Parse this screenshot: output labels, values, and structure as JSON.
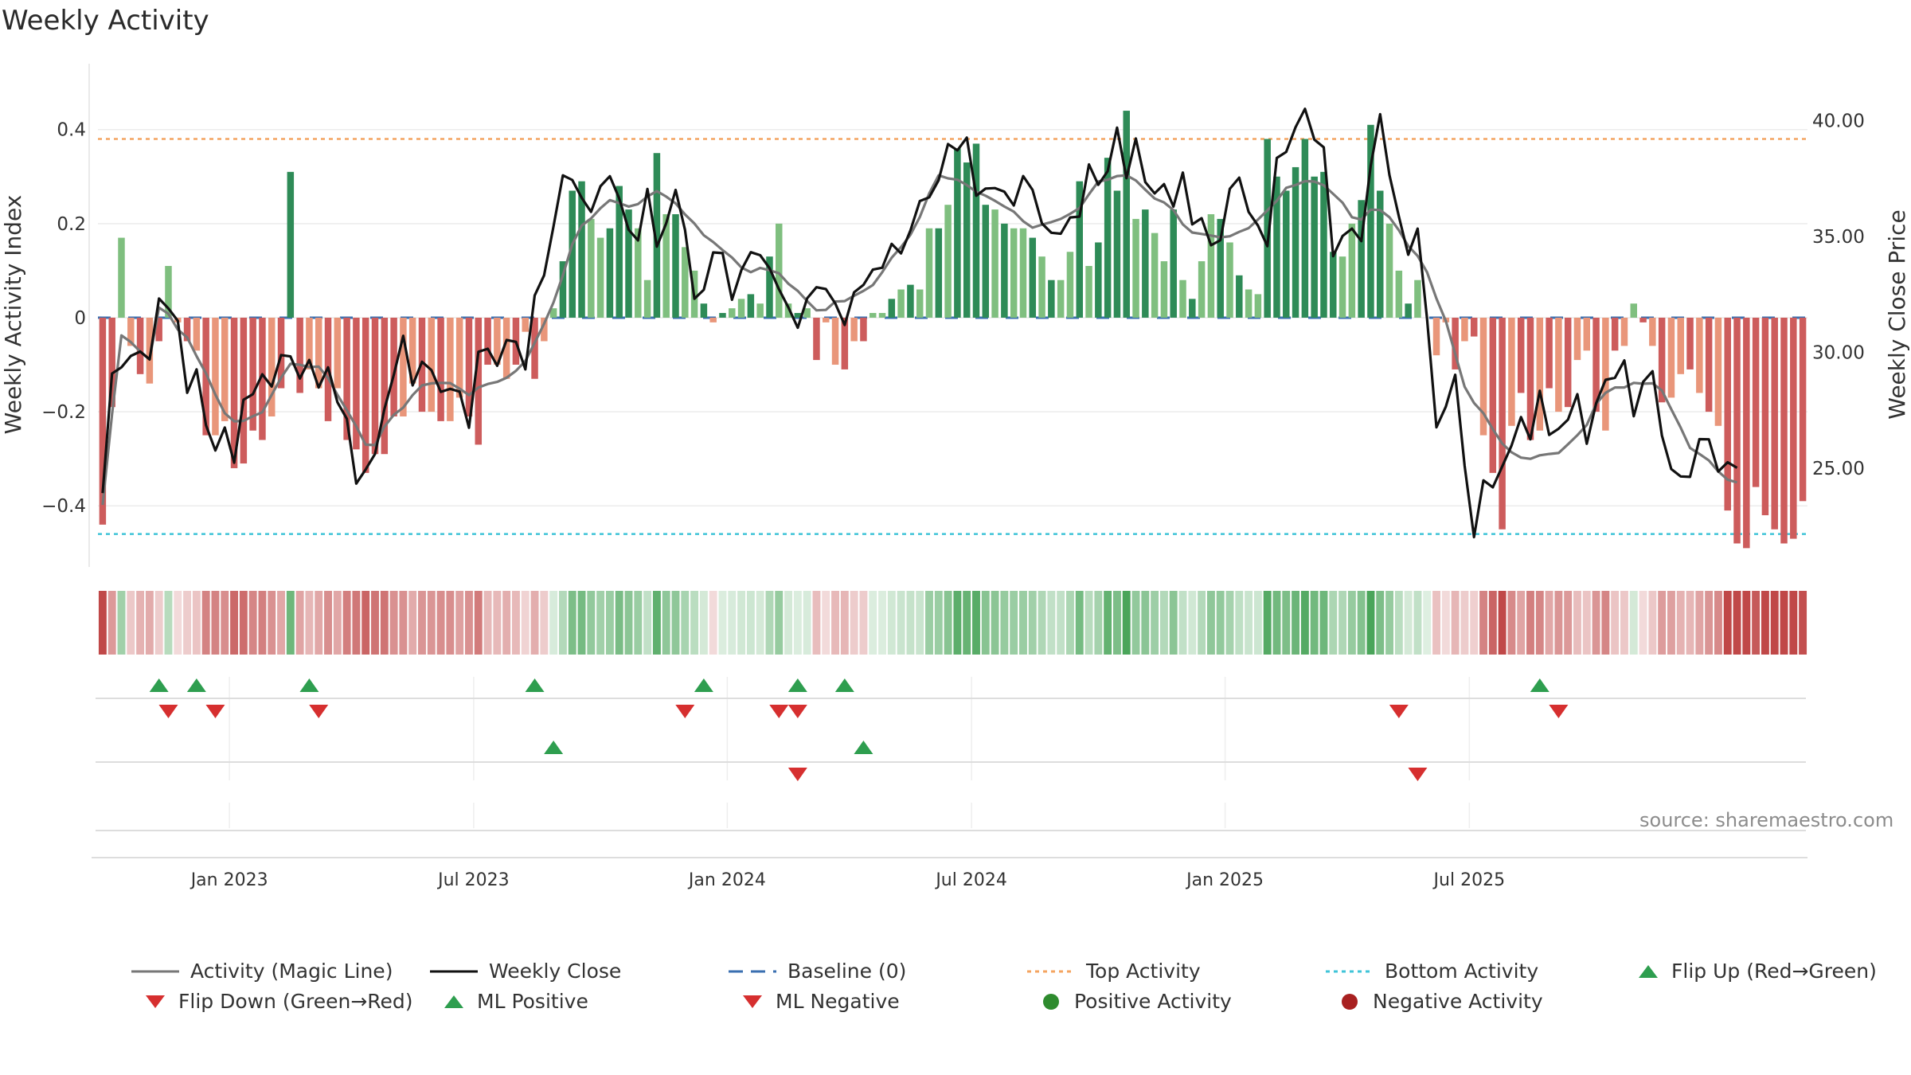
{
  "title": "Weekly Activity",
  "source": "source: sharemaestro.com",
  "colors": {
    "pos_strong": "#2e8b57",
    "pos_light": "#7fbf7f",
    "neg_strong": "#cd5c5c",
    "neg_light": "#e9967a",
    "magic": "#777777",
    "close": "#111111",
    "baseline": "#3a6fb0",
    "top": "#f4a460",
    "bottom": "#40c4d8",
    "flip_up": "#2e9e4f",
    "flip_down": "#d62f2f"
  },
  "chart_data": {
    "type": "bar+line",
    "ylabel_left": "Weekly Activity Index",
    "ylabel_right": "Weekly Close Price",
    "left_ticks": [
      "0.4",
      "0.2",
      "0",
      "−0.2",
      "−0.4"
    ],
    "right_ticks": [
      "40.00",
      "35.00",
      "30.00",
      "25.00"
    ],
    "x_ticks": [
      "Jan 2023",
      "Jul 2023",
      "Jan 2024",
      "Jul 2024",
      "Jan 2025",
      "Jul 2025"
    ],
    "ylim_left": [
      -0.53,
      0.54
    ],
    "ylim_right": [
      20.73,
      42.46
    ],
    "top_activity": 0.38,
    "bottom_activity": -0.46,
    "activity": [
      -0.44,
      -0.19,
      0.17,
      -0.06,
      -0.12,
      -0.14,
      -0.05,
      0.11,
      -0.01,
      -0.05,
      -0.07,
      -0.25,
      -0.25,
      -0.22,
      -0.32,
      -0.31,
      -0.24,
      -0.26,
      -0.21,
      -0.15,
      0.31,
      -0.16,
      -0.11,
      -0.15,
      -0.22,
      -0.15,
      -0.26,
      -0.28,
      -0.33,
      -0.29,
      -0.29,
      -0.21,
      -0.21,
      -0.14,
      -0.2,
      -0.2,
      -0.22,
      -0.22,
      -0.17,
      -0.21,
      -0.27,
      -0.1,
      -0.1,
      -0.13,
      -0.1,
      -0.03,
      -0.13,
      -0.05,
      0.02,
      0.12,
      0.27,
      0.29,
      0.21,
      0.17,
      0.19,
      0.28,
      0.23,
      0.19,
      0.08,
      0.35,
      0.22,
      0.22,
      0.15,
      0.1,
      0.03,
      -0.01,
      0.01,
      0.02,
      0.04,
      0.05,
      0.03,
      0.13,
      0.2,
      0.03,
      0.01,
      0.02,
      -0.09,
      -0.01,
      -0.1,
      -0.11,
      -0.05,
      -0.05,
      0.01,
      0.01,
      0.04,
      0.06,
      0.07,
      0.06,
      0.19,
      0.19,
      0.24,
      0.36,
      0.33,
      0.37,
      0.24,
      0.23,
      0.2,
      0.19,
      0.19,
      0.17,
      0.13,
      0.08,
      0.08,
      0.14,
      0.29,
      0.11,
      0.16,
      0.34,
      0.27,
      0.44,
      0.21,
      0.23,
      0.18,
      0.12,
      0.23,
      0.08,
      0.04,
      0.12,
      0.22,
      0.21,
      0.16,
      0.09,
      0.06,
      0.05,
      0.38,
      0.3,
      0.27,
      0.32,
      0.38,
      0.3,
      0.31,
      0.14,
      0.13,
      0.2,
      0.25,
      0.41,
      0.27,
      0.2,
      0.1,
      0.03,
      0.08,
      0.0,
      -0.08,
      -0.01,
      -0.11,
      -0.05,
      -0.04,
      -0.25,
      -0.33,
      -0.45,
      -0.23,
      -0.16,
      -0.26,
      -0.24,
      -0.15,
      -0.2,
      -0.19,
      -0.09,
      -0.07,
      -0.2,
      -0.24,
      -0.07,
      -0.06,
      0.03,
      -0.01,
      -0.06,
      -0.18,
      -0.17,
      -0.12,
      -0.11,
      -0.16,
      -0.2,
      -0.23,
      -0.41,
      -0.48,
      -0.49,
      -0.36,
      -0.42,
      -0.45,
      -0.48,
      -0.47,
      -0.39
    ],
    "weekly_close": [
      23.92,
      29.08,
      29.35,
      29.84,
      30.03,
      29.69,
      32.32,
      31.89,
      31.36,
      28.25,
      29.26,
      26.85,
      25.76,
      26.75,
      25.23,
      27.95,
      28.19,
      29.05,
      28.52,
      29.88,
      29.82,
      28.87,
      29.67,
      28.48,
      29.35,
      27.84,
      27.13,
      24.33,
      24.94,
      25.61,
      27.55,
      29.03,
      30.71,
      28.57,
      29.59,
      29.23,
      28.29,
      28.42,
      28.3,
      26.74,
      30.02,
      30.15,
      29.42,
      30.53,
      30.45,
      29.26,
      32.45,
      33.32,
      35.43,
      37.64,
      37.44,
      36.67,
      36.06,
      37.17,
      37.6,
      36.64,
      35.29,
      34.83,
      37.05,
      34.56,
      35.57,
      37.01,
      35.28,
      32.31,
      32.7,
      34.31,
      34.28,
      32.27,
      33.55,
      34.32,
      34.19,
      33.63,
      32.72,
      31.94,
      31.06,
      32.33,
      32.81,
      32.73,
      32.11,
      31.18,
      32.59,
      32.91,
      33.57,
      33.65,
      34.68,
      34.27,
      35.26,
      36.53,
      36.69,
      37.43,
      38.99,
      38.72,
      39.27,
      36.76,
      37.07,
      37.09,
      36.93,
      36.34,
      37.61,
      37.01,
      35.56,
      35.16,
      35.12,
      35.82,
      35.86,
      38.11,
      37.23,
      37.82,
      39.7,
      37.52,
      39.23,
      37.35,
      36.86,
      37.26,
      36.29,
      37.76,
      35.52,
      35.79,
      34.62,
      34.84,
      37.06,
      37.54,
      36.06,
      35.47,
      34.58,
      38.39,
      38.65,
      39.72,
      40.51,
      39.18,
      38.85,
      34.15,
      35.02,
      35.34,
      34.8,
      38.07,
      40.28,
      37.65,
      35.87,
      34.21,
      35.34,
      31.45,
      26.76,
      27.65,
      29.03,
      25.1,
      22.02,
      24.47,
      24.17,
      25.07,
      25.98,
      27.2,
      26.24,
      28.34,
      26.43,
      26.7,
      27.09,
      28.19,
      26.05,
      27.8,
      28.81,
      28.9,
      29.65,
      27.24,
      28.72,
      29.18,
      26.4,
      24.96,
      24.64,
      24.62,
      26.25,
      26.24,
      24.85,
      25.25,
      25.01
    ],
    "magic_line": [
      23.41,
      27.32,
      30.73,
      30.44,
      30.03,
      29.7,
      31.93,
      31.66,
      30.98,
      30.64,
      29.83,
      29.09,
      28.17,
      27.37,
      27.02,
      27.04,
      27.24,
      27.41,
      28.16,
      28.9,
      29.5,
      29.46,
      29.36,
      29.38,
      28.89,
      28.16,
      27.5,
      26.8,
      26.01,
      25.99,
      26.79,
      27.3,
      27.61,
      28.15,
      28.57,
      28.66,
      28.68,
      28.67,
      28.43,
      28.15,
      28.48,
      28.63,
      28.72,
      28.9,
      29.2,
      29.62,
      30.41,
      31.23,
      32.15,
      33.32,
      34.66,
      35.47,
      35.78,
      36.22,
      36.57,
      36.44,
      36.29,
      36.4,
      36.73,
      36.96,
      36.72,
      36.43,
      35.95,
      35.56,
      35.05,
      34.76,
      34.41,
      34.09,
      33.66,
      33.46,
      33.64,
      33.54,
      33.41,
      32.96,
      32.65,
      32.21,
      31.81,
      31.83,
      32.19,
      32.21,
      32.44,
      32.65,
      32.9,
      33.46,
      34.08,
      34.54,
      35.07,
      35.84,
      36.86,
      37.64,
      37.51,
      37.45,
      37.22,
      36.93,
      36.76,
      36.54,
      36.29,
      36.07,
      35.66,
      35.38,
      35.51,
      35.62,
      35.76,
      35.98,
      36.23,
      36.82,
      37.37,
      37.45,
      37.61,
      37.64,
      37.42,
      37.02,
      36.64,
      36.47,
      36.14,
      35.52,
      35.17,
      35.11,
      35.04,
      34.96,
      35.01,
      35.2,
      35.36,
      35.73,
      36.13,
      36.54,
      37.1,
      37.22,
      37.39,
      37.37,
      37.21,
      36.84,
      36.46,
      35.83,
      35.73,
      36.16,
      36.14,
      35.83,
      35.27,
      34.59,
      34.16,
      33.46,
      32.32,
      31.35,
      29.92,
      28.51,
      27.81,
      27.37,
      26.68,
      26.06,
      25.68,
      25.45,
      25.4,
      25.55,
      25.61,
      25.65,
      26.03,
      26.42,
      26.86,
      27.77,
      28.25,
      28.48,
      28.48,
      28.68,
      28.64,
      28.66,
      28.35,
      27.54,
      26.75,
      25.87,
      25.61,
      25.33,
      24.86,
      24.5,
      24.38
    ],
    "flip_up": [
      6,
      10,
      22,
      46,
      64,
      74,
      79,
      153
    ],
    "flip_down": [
      7,
      12,
      23,
      62,
      72,
      74,
      138,
      155
    ],
    "ml_positive": [
      48,
      81
    ],
    "ml_negative": [
      74,
      140
    ],
    "legend": [
      {
        "label": "Activity (Magic Line)",
        "kind": "line-gray"
      },
      {
        "label": "Weekly Close",
        "kind": "line-black"
      },
      {
        "label": "Baseline (0)",
        "kind": "dash-blue"
      },
      {
        "label": "Top Activity",
        "kind": "dot-orange"
      },
      {
        "label": "Bottom Activity",
        "kind": "dot-cyan"
      },
      {
        "label": "Flip Up (Red→Green)",
        "kind": "tri-up"
      },
      {
        "label": "Flip Down (Green→Red)",
        "kind": "tri-down"
      },
      {
        "label": "ML Positive",
        "kind": "tri-up"
      },
      {
        "label": "ML Negative",
        "kind": "tri-down"
      },
      {
        "label": "Positive Activity",
        "kind": "dot-green"
      },
      {
        "label": "Negative Activity",
        "kind": "dot-red"
      }
    ]
  }
}
